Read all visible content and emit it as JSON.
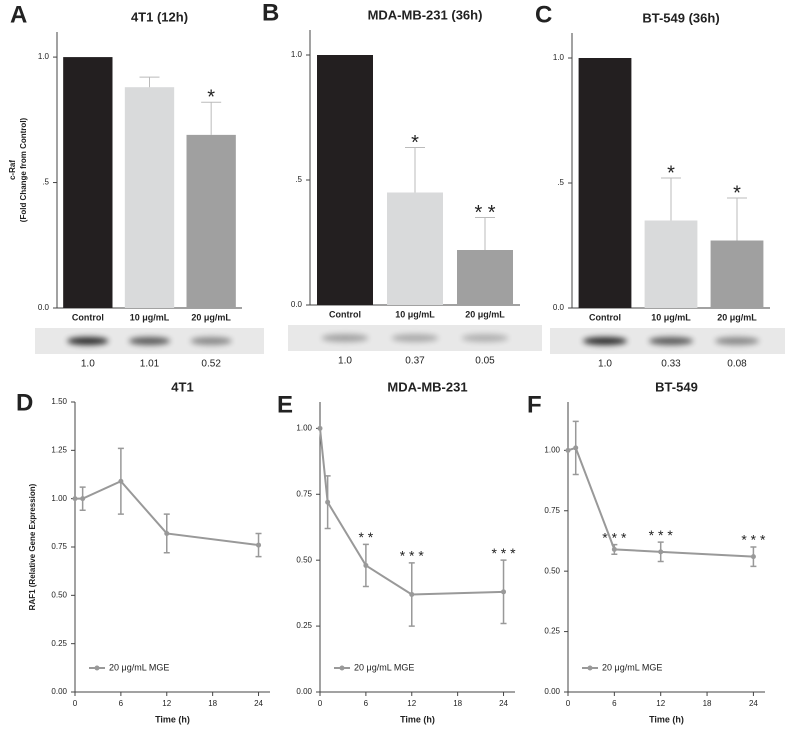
{
  "chart_data": [
    {
      "type": "bar",
      "panel": "A",
      "title": "4T1 (12h)",
      "ylabel": [
        "c-Raf",
        "(Fold Change from Control)"
      ],
      "categories": [
        "Control",
        "10 μg/mL",
        "20 μg/mL"
      ],
      "values": [
        1.0,
        0.88,
        0.69
      ],
      "errors": [
        null,
        0.04,
        0.13
      ],
      "annotations": [
        null,
        null,
        "*"
      ],
      "colors": [
        "#231f20",
        "#d9dadb",
        "#a0a0a0"
      ],
      "blot_labels": [
        "1.0",
        "1.01",
        "0.52"
      ],
      "ylim": [
        0,
        1.1
      ],
      "yticks": [
        {
          "value": 0,
          "label": "0.0"
        },
        {
          "value": 0.5,
          "label": ".5"
        },
        {
          "value": 1,
          "label": "1.0"
        }
      ]
    },
    {
      "type": "bar",
      "panel": "B",
      "title": "MDA-MB-231 (36h)",
      "categories": [
        "Control",
        "10 μg/mL",
        "20 μg/mL"
      ],
      "values": [
        1.0,
        0.45,
        0.22
      ],
      "errors": [
        null,
        0.18,
        0.13
      ],
      "annotations": [
        null,
        "*",
        "* *"
      ],
      "colors": [
        "#231f20",
        "#d9dadb",
        "#a0a0a0"
      ],
      "blot_labels": [
        "1.0",
        "0.37",
        "0.05"
      ],
      "ylim": [
        0,
        1.1
      ],
      "yticks": [
        {
          "value": 0,
          "label": "0.0"
        },
        {
          "value": 0.5,
          "label": ".5"
        },
        {
          "value": 1,
          "label": "1.0"
        }
      ]
    },
    {
      "type": "bar",
      "panel": "C",
      "title": "BT-549 (36h)",
      "categories": [
        "Control",
        "10 μg/mL",
        "20 μg/mL"
      ],
      "values": [
        1.0,
        0.35,
        0.27
      ],
      "errors": [
        null,
        0.17,
        0.17
      ],
      "annotations": [
        null,
        "*",
        "*"
      ],
      "colors": [
        "#231f20",
        "#d9dadb",
        "#a0a0a0"
      ],
      "blot_labels": [
        "1.0",
        "0.33",
        "0.08"
      ],
      "ylim": [
        0,
        1.1
      ],
      "yticks": [
        {
          "value": 0,
          "label": "0.0"
        },
        {
          "value": 0.5,
          "label": ".5"
        },
        {
          "value": 1,
          "label": "1.0"
        }
      ]
    },
    {
      "type": "line",
      "panel": "D",
      "title": "4T1",
      "ylabel": [
        "RAF1 (Relative Gene Expression)"
      ],
      "xlabel": "Time (h)",
      "x": [
        0,
        1,
        6,
        12,
        24
      ],
      "series": [
        {
          "name": "20 μg/mL MGE",
          "color": "#999999",
          "values": [
            1.0,
            1.0,
            1.09,
            0.82,
            0.76
          ],
          "errors": [
            null,
            0.06,
            0.17,
            0.1,
            0.06
          ],
          "annotations": [
            null,
            null,
            null,
            null,
            null
          ]
        }
      ],
      "xlim": [
        0,
        25.5
      ],
      "xticks": [
        0,
        6,
        12,
        18,
        24
      ],
      "ylim": [
        0,
        1.5
      ],
      "yticks": [
        {
          "value": 0,
          "label": "0.00"
        },
        {
          "value": 0.25,
          "label": "0.25"
        },
        {
          "value": 0.5,
          "label": "0.50"
        },
        {
          "value": 0.75,
          "label": "0.75"
        },
        {
          "value": 1,
          "label": "1.00"
        },
        {
          "value": 1.25,
          "label": "1.25"
        },
        {
          "value": 1.5,
          "label": "1.50"
        }
      ]
    },
    {
      "type": "line",
      "panel": "E",
      "title": "MDA-MB-231",
      "xlabel": "Time (h)",
      "x": [
        0,
        1,
        6,
        12,
        24
      ],
      "series": [
        {
          "name": "20 μg/mL MGE",
          "color": "#999999",
          "values": [
            1.0,
            0.72,
            0.48,
            0.37,
            0.38
          ],
          "errors": [
            null,
            0.1,
            0.08,
            0.12,
            0.12
          ],
          "annotations": [
            null,
            null,
            "* *",
            "* * *",
            "* * *"
          ]
        }
      ],
      "xlim": [
        0,
        25.5
      ],
      "xticks": [
        0,
        6,
        12,
        18,
        24
      ],
      "ylim": [
        0,
        1.1
      ],
      "yticks": [
        {
          "value": 0,
          "label": "0.00"
        },
        {
          "value": 0.25,
          "label": "0.25"
        },
        {
          "value": 0.5,
          "label": "0.50"
        },
        {
          "value": 0.75,
          "label": "0.75"
        },
        {
          "value": 1,
          "label": "1.00"
        }
      ]
    },
    {
      "type": "line",
      "panel": "F",
      "title": "BT-549",
      "xlabel": "Time (h)",
      "x": [
        0,
        1,
        6,
        12,
        24
      ],
      "series": [
        {
          "name": "20 μg/mL MGE",
          "color": "#999999",
          "values": [
            1.0,
            1.01,
            0.59,
            0.58,
            0.56
          ],
          "errors": [
            null,
            0.11,
            0.02,
            0.04,
            0.04
          ],
          "annotations": [
            null,
            null,
            "* * *",
            "* * *",
            "* * *"
          ]
        }
      ],
      "xlim": [
        0,
        25.5
      ],
      "xticks": [
        0,
        6,
        12,
        18,
        24
      ],
      "ylim": [
        0,
        1.2
      ],
      "yticks": [
        {
          "value": 0,
          "label": "0.00"
        },
        {
          "value": 0.25,
          "label": "0.25"
        },
        {
          "value": 0.5,
          "label": "0.50"
        },
        {
          "value": 0.75,
          "label": "0.75"
        },
        {
          "value": 1,
          "label": "1.00"
        }
      ]
    }
  ]
}
